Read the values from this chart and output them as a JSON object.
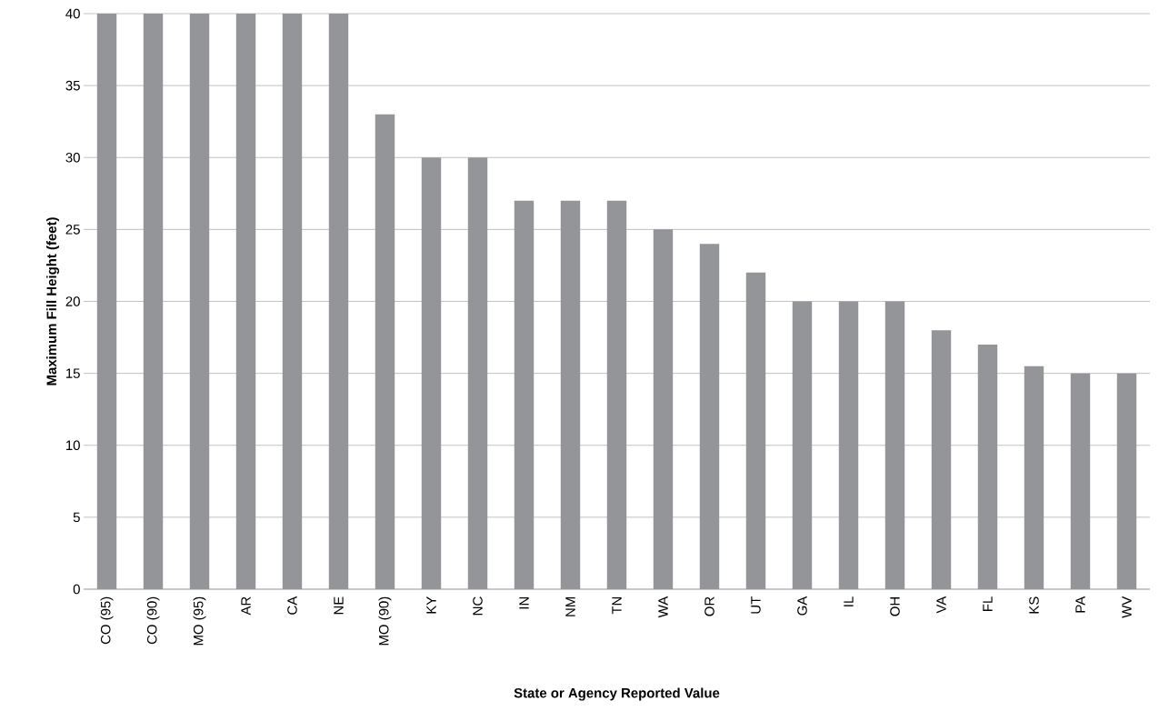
{
  "chart_data": {
    "type": "bar",
    "xlabel": "State or Agency Reported Value",
    "ylabel": "Maximum Fill Height (feet)",
    "categories": [
      "CO (95)",
      "CO (90)",
      "MO (95)",
      "AR",
      "CA",
      "NE",
      "MO (90)",
      "KY",
      "NC",
      "IN",
      "NM",
      "TN",
      "WA",
      "OR",
      "UT",
      "GA",
      "IL",
      "OH",
      "VA",
      "FL",
      "KS",
      "PA",
      "WV"
    ],
    "values": [
      40,
      40,
      40,
      40,
      40,
      40,
      33,
      30,
      30,
      27,
      27,
      27,
      25,
      24,
      22,
      20,
      20,
      20,
      18,
      17,
      15.5,
      15,
      15
    ],
    "color": "#939598",
    "ylim": [
      0,
      40
    ],
    "yticks": [
      0,
      5,
      10,
      15,
      20,
      25,
      30,
      35,
      40
    ],
    "grid": "y"
  }
}
